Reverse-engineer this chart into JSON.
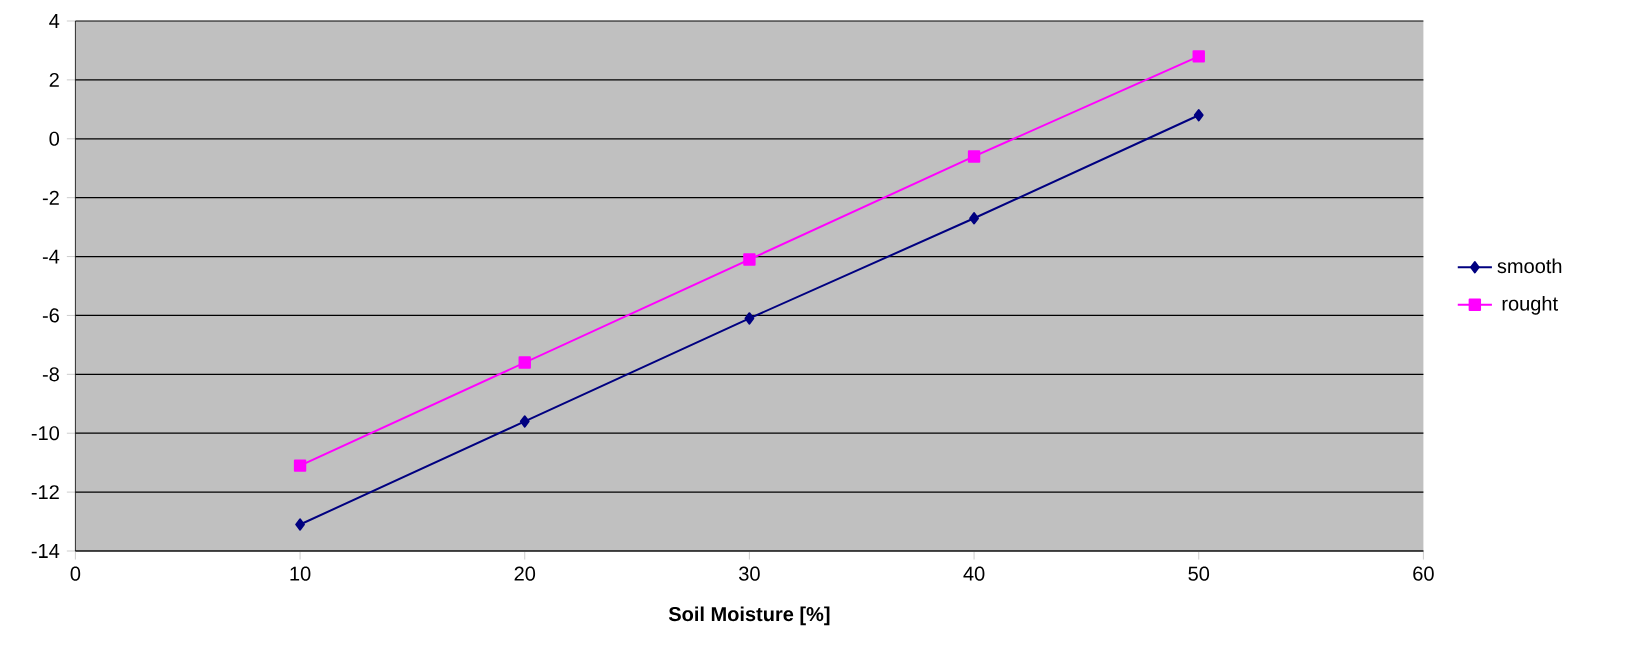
{
  "chart_data": {
    "type": "line",
    "xlabel": "Soil Moisture [%]",
    "x": [
      10,
      20,
      30,
      40,
      50
    ],
    "series": [
      {
        "name": "smooth",
        "color": "#000080",
        "marker": "diamond",
        "values": [
          -13.1,
          -9.6,
          -6.1,
          -2.7,
          0.8
        ]
      },
      {
        "name": "rought",
        "color": "#ff00ff",
        "marker": "square",
        "values": [
          -11.1,
          -7.6,
          -4.1,
          -0.6,
          2.8
        ]
      }
    ],
    "xlim": [
      0,
      60
    ],
    "xticks": [
      0,
      10,
      20,
      30,
      40,
      50,
      60
    ],
    "ylim": [
      -14,
      4
    ],
    "yticks": [
      -14,
      -12,
      -10,
      -8,
      -6,
      -4,
      -2,
      0,
      2,
      4
    ],
    "grid": "y",
    "legend": "right",
    "line_style": "solid"
  }
}
